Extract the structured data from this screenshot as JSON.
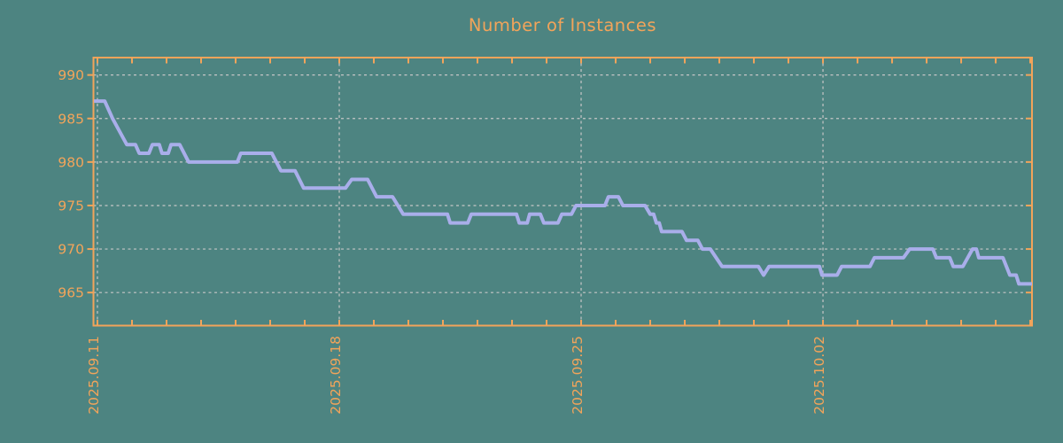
{
  "chart_data": {
    "type": "line",
    "title": "Number of Instances",
    "xlabel": "",
    "ylabel": "",
    "legend": "none",
    "grid": {
      "horizontal": true,
      "vertical_weekly": true,
      "style": "dashed"
    },
    "x_axis": {
      "unit": "days since 2025-09-11",
      "range_days": [
        -0.115,
        27.05
      ],
      "tick_labels": [
        {
          "label": "2025.09.11",
          "day": 0
        },
        {
          "label": "2025.09.18",
          "day": 7
        },
        {
          "label": "2025.09.25",
          "day": 14
        },
        {
          "label": "2025.10.02",
          "day": 21
        }
      ],
      "minor_tick_interval_days": 1
    },
    "y_axis": {
      "ticks": [
        990,
        985,
        980,
        975,
        970,
        965
      ],
      "range": [
        961.2,
        992.0
      ]
    },
    "series": [
      {
        "name": "instances",
        "points": [
          [
            -0.1,
            987
          ],
          [
            0.21,
            987
          ],
          [
            0.44,
            985
          ],
          [
            0.85,
            982
          ],
          [
            1.1,
            982
          ],
          [
            1.21,
            981
          ],
          [
            1.49,
            981
          ],
          [
            1.59,
            982
          ],
          [
            1.79,
            982
          ],
          [
            1.87,
            981
          ],
          [
            2.05,
            981
          ],
          [
            2.13,
            982
          ],
          [
            2.38,
            982
          ],
          [
            2.64,
            980
          ],
          [
            4.05,
            980
          ],
          [
            4.15,
            981
          ],
          [
            5.05,
            981
          ],
          [
            5.18,
            980
          ],
          [
            5.31,
            979
          ],
          [
            5.72,
            979
          ],
          [
            5.97,
            977
          ],
          [
            7.18,
            977
          ],
          [
            7.36,
            978
          ],
          [
            7.82,
            978
          ],
          [
            8.08,
            976
          ],
          [
            8.54,
            976
          ],
          [
            8.85,
            974
          ],
          [
            10.13,
            974
          ],
          [
            10.21,
            973
          ],
          [
            10.72,
            973
          ],
          [
            10.82,
            974
          ],
          [
            12.13,
            974
          ],
          [
            12.21,
            973
          ],
          [
            12.44,
            973
          ],
          [
            12.51,
            974
          ],
          [
            12.82,
            974
          ],
          [
            12.92,
            973
          ],
          [
            13.33,
            973
          ],
          [
            13.44,
            974
          ],
          [
            13.72,
            974
          ],
          [
            13.85,
            975
          ],
          [
            14.69,
            975
          ],
          [
            14.79,
            976
          ],
          [
            15.08,
            976
          ],
          [
            15.21,
            975
          ],
          [
            15.85,
            975
          ],
          [
            16.0,
            974
          ],
          [
            16.1,
            974
          ],
          [
            16.18,
            973
          ],
          [
            16.26,
            973
          ],
          [
            16.33,
            972
          ],
          [
            16.92,
            972
          ],
          [
            17.05,
            971
          ],
          [
            17.38,
            971
          ],
          [
            17.51,
            970
          ],
          [
            17.74,
            970
          ],
          [
            18.08,
            968
          ],
          [
            19.13,
            968
          ],
          [
            19.28,
            967
          ],
          [
            19.44,
            968
          ],
          [
            20.9,
            968
          ],
          [
            20.97,
            967
          ],
          [
            21.41,
            967
          ],
          [
            21.54,
            968
          ],
          [
            22.36,
            968
          ],
          [
            22.49,
            969
          ],
          [
            23.33,
            969
          ],
          [
            23.51,
            970
          ],
          [
            24.18,
            970
          ],
          [
            24.28,
            969
          ],
          [
            24.67,
            969
          ],
          [
            24.77,
            968
          ],
          [
            25.05,
            968
          ],
          [
            25.33,
            970
          ],
          [
            25.44,
            970
          ],
          [
            25.51,
            969
          ],
          [
            26.21,
            969
          ],
          [
            26.41,
            967
          ],
          [
            26.59,
            967
          ],
          [
            26.67,
            966
          ],
          [
            27.05,
            966
          ]
        ]
      }
    ],
    "colors": {
      "background": "#4d8481",
      "axis": "#f2a45a",
      "title": "#f2a45a",
      "tick_labels": "#f2a45a",
      "line": "#a9aeea",
      "grid": "#c6c6c6"
    }
  }
}
